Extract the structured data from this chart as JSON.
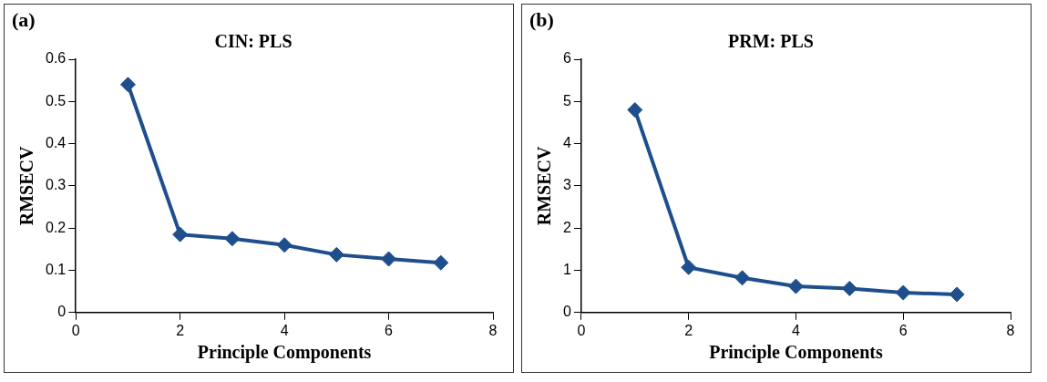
{
  "chart_data": [
    {
      "type": "line",
      "title": "CIN: PLS",
      "xlabel": "Principle Components",
      "ylabel": "RMSECV",
      "annotations": [
        "(a)"
      ],
      "x": [
        1,
        2,
        3,
        4,
        5,
        6,
        7
      ],
      "series": [
        {
          "color": "#1f4e8c",
          "values": [
            0.54,
            0.185,
            0.175,
            0.16,
            0.137,
            0.127,
            0.118
          ]
        }
      ],
      "xlim": [
        0,
        8
      ],
      "xticks": [
        0,
        2,
        4,
        6,
        8
      ],
      "ylim": [
        0,
        0.6
      ],
      "yticks": [
        0,
        0.1,
        0.2,
        0.3,
        0.4,
        0.5,
        0.6
      ],
      "grid": false,
      "legend": false,
      "marker": "diamond",
      "line_style": "solid"
    },
    {
      "type": "line",
      "title": "PRM: PLS",
      "xlabel": "Principle Components",
      "ylabel": "RMSECV",
      "annotations": [
        "(b)"
      ],
      "x": [
        1,
        2,
        3,
        4,
        5,
        6,
        7
      ],
      "series": [
        {
          "color": "#1f4e8c",
          "values": [
            4.8,
            1.07,
            0.82,
            0.62,
            0.57,
            0.47,
            0.43
          ]
        }
      ],
      "xlim": [
        0,
        8
      ],
      "xticks": [
        0,
        2,
        4,
        6,
        8
      ],
      "ylim": [
        0,
        6
      ],
      "yticks": [
        0,
        1,
        2,
        3,
        4,
        5,
        6
      ],
      "grid": false,
      "legend": false,
      "marker": "diamond",
      "line_style": "solid"
    }
  ]
}
